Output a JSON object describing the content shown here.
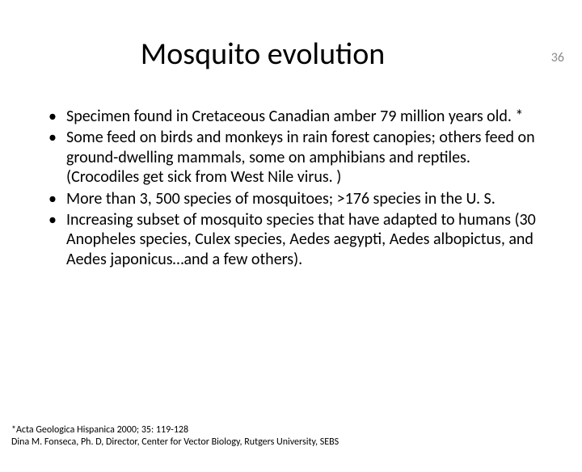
{
  "pageNumber": "36",
  "title": "Mosquito evolution",
  "bullets": [
    "Specimen found in Cretaceous Canadian amber 79 million years old. *",
    "Some feed on birds and monkeys in rain forest canopies; others feed on ground-dwelling mammals, some on amphibians and reptiles. (Crocodiles get sick from West Nile virus. )",
    "More than 3, 500 species of mosquitoes; >176 species in the U. S.",
    "Increasing subset of mosquito species that have adapted to humans (30 Anopheles species, Culex species, Aedes aegypti, Aedes albopictus, and Aedes japonicus…and a few others)."
  ],
  "footnote": {
    "line1": "*Acta Geologica Hispanica 2000; 35: 119-128",
    "line2": " Dina M. Fonseca, Ph. D, Director, Center for Vector Biology, Rutgers University, SEBS"
  },
  "colors": {
    "background": "#ffffff",
    "text": "#000000",
    "pageNumber": "#8b8b8b"
  }
}
